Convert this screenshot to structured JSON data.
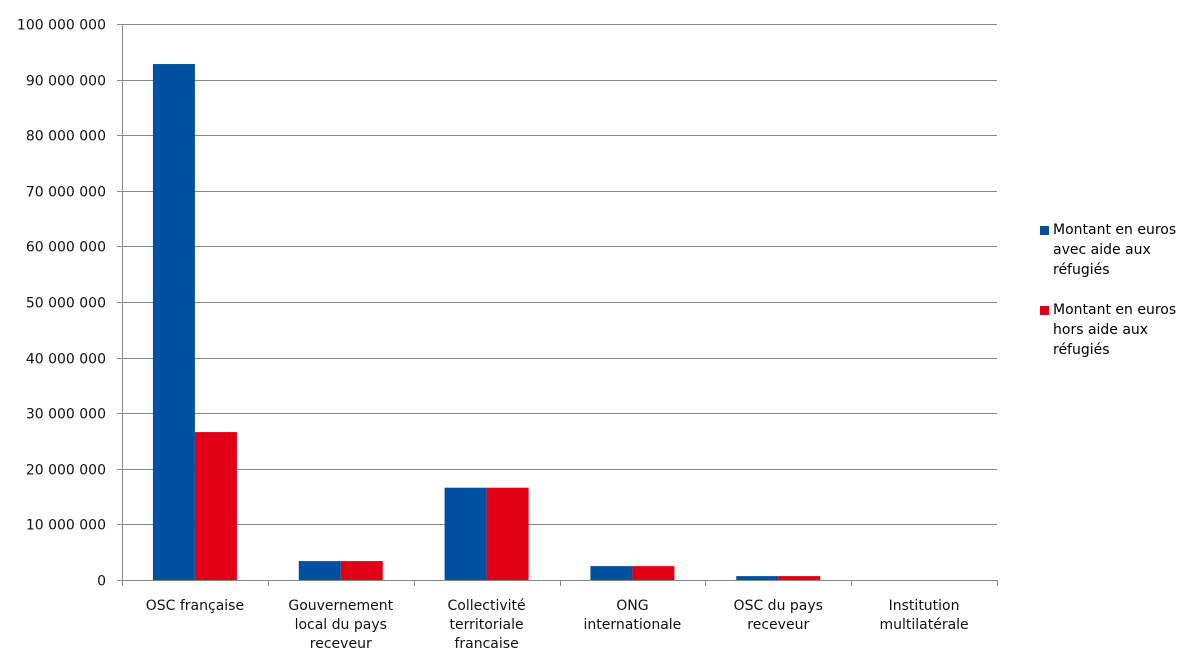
{
  "chart_data": {
    "type": "bar",
    "categories": [
      [
        "OSC française"
      ],
      [
        "Gouvernement",
        "local du pays",
        "receveur"
      ],
      [
        "Collectivité",
        "territoriale",
        "francaise"
      ],
      [
        "ONG",
        "internationale"
      ],
      [
        "OSC du pays",
        "receveur"
      ],
      [
        "Institution",
        "multilatérale"
      ]
    ],
    "series": [
      {
        "name": [
          "Montant en euros",
          "avec aide aux",
          "réfugiés"
        ],
        "color": "#0050a0",
        "values": [
          92800000,
          3400000,
          16600000,
          2500000,
          700000,
          0
        ]
      },
      {
        "name": [
          "Montant en euros",
          "hors aide aux",
          "réfugiés"
        ],
        "color": "#e00016",
        "values": [
          26600000,
          3400000,
          16600000,
          2500000,
          700000,
          0
        ]
      }
    ],
    "ylim": [
      0,
      100000000
    ],
    "ytick_step": 10000000,
    "ytick_labels": [
      "0",
      "10 000 000",
      "20 000 000",
      "30 000 000",
      "40 000 000",
      "50 000 000",
      "60 000 000",
      "70 000 000",
      "80 000 000",
      "90 000 000",
      "100 000 000"
    ],
    "grid": true,
    "gridline_color": "#888888",
    "legend_position": "right"
  }
}
